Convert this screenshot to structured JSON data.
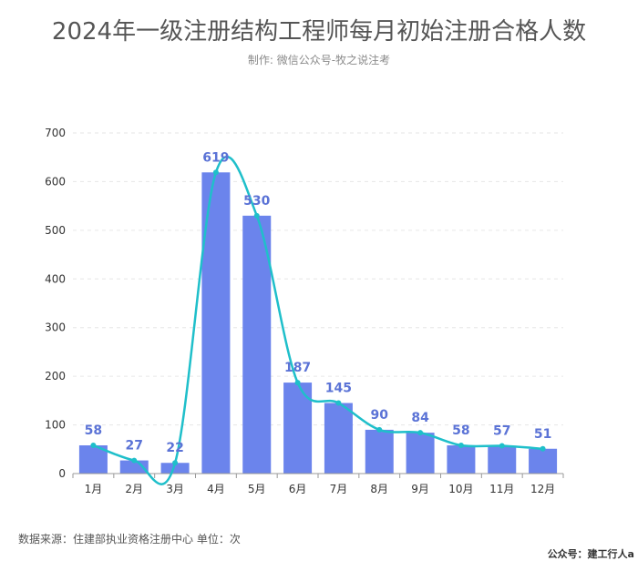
{
  "header": {
    "title": "2024年一级注册结构工程师每月初始注册合格人数",
    "subtitle": "制作: 微信公众号-牧之说注考"
  },
  "footer": {
    "source": "数据来源：住建部执业资格注册中心    单位：次",
    "brand": "公众号：建工行人a"
  },
  "colors": {
    "bar": "#6b84ec",
    "line": "#1fbfca",
    "label": "#5b73d6",
    "axis": "#999999",
    "grid": "#e6e6e6"
  },
  "chart_data": {
    "type": "bar",
    "categories": [
      "1月",
      "2月",
      "3月",
      "4月",
      "5月",
      "6月",
      "7月",
      "8月",
      "9月",
      "10月",
      "11月",
      "12月"
    ],
    "series": [
      {
        "values": [
          58,
          27,
          22,
          619,
          530,
          187,
          145,
          90,
          84,
          58,
          57,
          51
        ]
      }
    ],
    "overlay": "smooth-line",
    "ylim": [
      0,
      700
    ],
    "yticks": [
      0,
      100,
      200,
      300,
      400,
      500,
      600,
      700
    ],
    "grid": true
  }
}
